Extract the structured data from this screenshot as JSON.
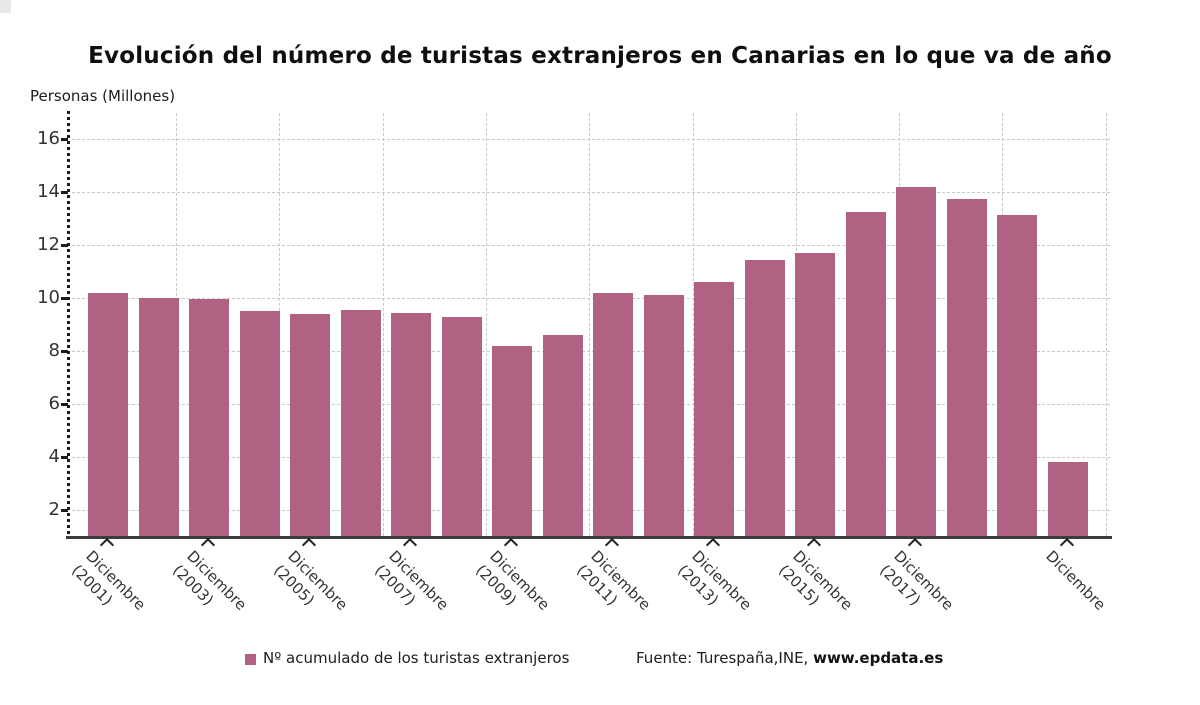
{
  "title": "Evolución del número de turistas extranjeros en Canarias en lo que va de año",
  "y_axis_title": "Personas (Millones)",
  "legend": {
    "series_label": "Nº acumulado de los turistas extranjeros",
    "source_prefix": "Fuente: Turespaña,INE, ",
    "source_site": "www.epdata.es"
  },
  "colors": {
    "bar": "#b16181",
    "grid": "#c9c9c9",
    "axis": "#333333",
    "title_text": "#0f0f0f"
  },
  "chart_data": {
    "type": "bar",
    "title": "Evolución del número de turistas extranjeros en Canarias en lo que va de año",
    "xlabel": "",
    "ylabel": "Personas (Millones)",
    "ylim": [
      1,
      17
    ],
    "y_ticks": [
      2,
      4,
      6,
      8,
      10,
      12,
      14,
      16
    ],
    "grid": "dashed, horizontal and vertical",
    "legend_position": "bottom",
    "series_name": "Nº acumulado de los turistas extranjeros",
    "values": [
      10.2,
      10.0,
      9.95,
      9.5,
      9.4,
      9.55,
      9.45,
      9.3,
      8.2,
      8.6,
      10.2,
      10.1,
      10.6,
      11.45,
      11.7,
      13.25,
      14.2,
      13.75,
      13.15,
      3.8
    ],
    "x_tick_labels": [
      {
        "bar_index": 0,
        "line1": "Diciembre",
        "line2": "(2001)"
      },
      {
        "bar_index": 2,
        "line1": "Diciembre",
        "line2": "(2003)"
      },
      {
        "bar_index": 4,
        "line1": "Diciembre",
        "line2": "(2005)"
      },
      {
        "bar_index": 6,
        "line1": "Diciembre",
        "line2": "(2007)"
      },
      {
        "bar_index": 8,
        "line1": "Diciembre",
        "line2": "(2009)"
      },
      {
        "bar_index": 10,
        "line1": "Diciembre",
        "line2": "(2011)"
      },
      {
        "bar_index": 12,
        "line1": "Diciembre",
        "line2": "(2013)"
      },
      {
        "bar_index": 14,
        "line1": "Diciembre",
        "line2": "(2015)"
      },
      {
        "bar_index": 16,
        "line1": "Diciembre",
        "line2": "(2017)"
      },
      {
        "bar_index": 19,
        "line1": "Diciembre",
        "line2": ""
      }
    ]
  }
}
